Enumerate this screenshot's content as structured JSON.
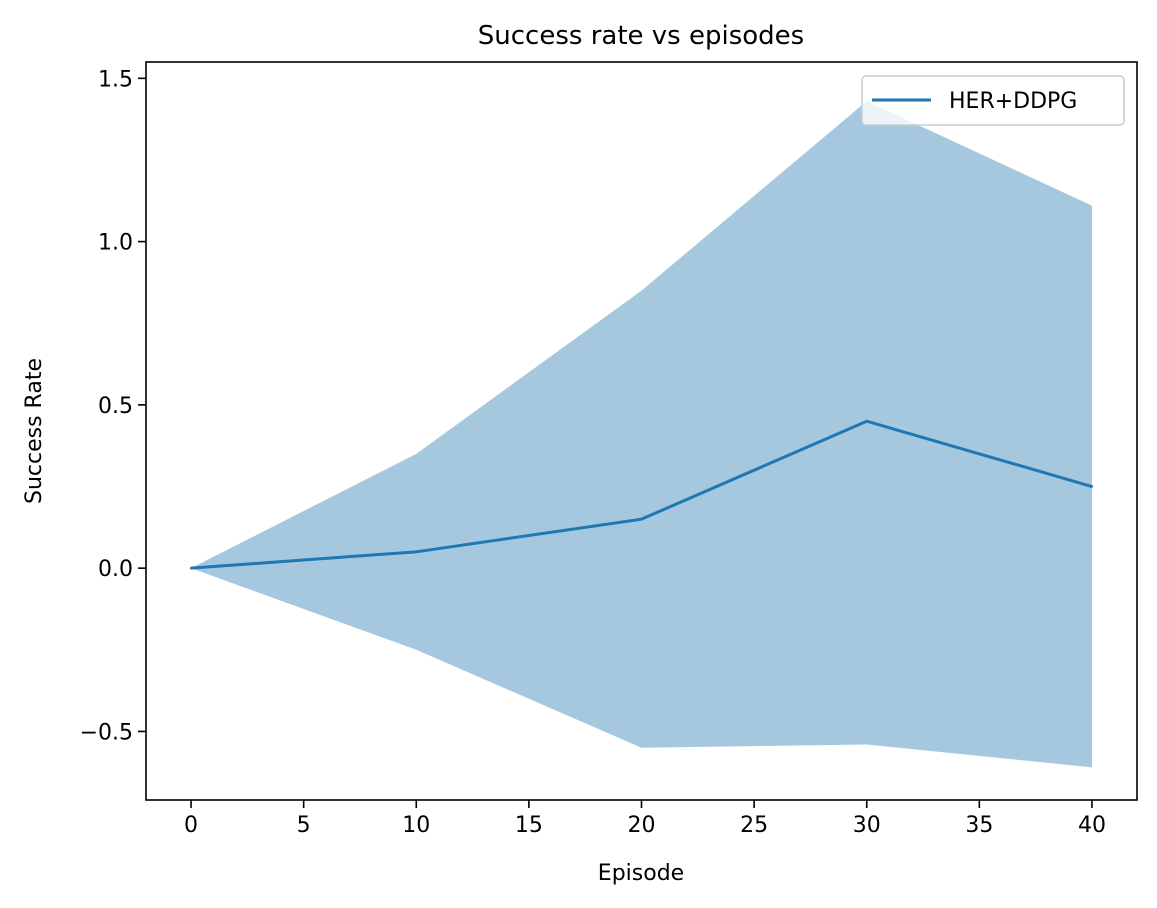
{
  "chart_data": {
    "type": "line",
    "title": "Success rate vs episodes",
    "xlabel": "Episode",
    "ylabel": "Success Rate",
    "xlim": [
      -2,
      42
    ],
    "ylim": [
      -0.71,
      1.55
    ],
    "xticks": [
      0,
      5,
      10,
      15,
      20,
      25,
      30,
      35,
      40
    ],
    "yticks": [
      -0.5,
      0.0,
      0.5,
      1.0,
      1.5
    ],
    "xtick_labels": [
      "0",
      "5",
      "10",
      "15",
      "20",
      "25",
      "30",
      "35",
      "40"
    ],
    "ytick_labels": [
      "−0.5",
      "0.0",
      "0.5",
      "1.0",
      "1.5"
    ],
    "grid": false,
    "legend_position": "top-right",
    "series": [
      {
        "name": "HER+DDPG",
        "color": "#1f77b4",
        "band_color": "#a6c8df",
        "x": [
          0,
          10,
          20,
          30,
          40
        ],
        "y": [
          0.0,
          0.05,
          0.15,
          0.45,
          0.25
        ],
        "upper": [
          0.0,
          0.35,
          0.85,
          1.43,
          1.11
        ],
        "lower": [
          0.0,
          -0.25,
          -0.55,
          -0.54,
          -0.61
        ]
      }
    ]
  }
}
